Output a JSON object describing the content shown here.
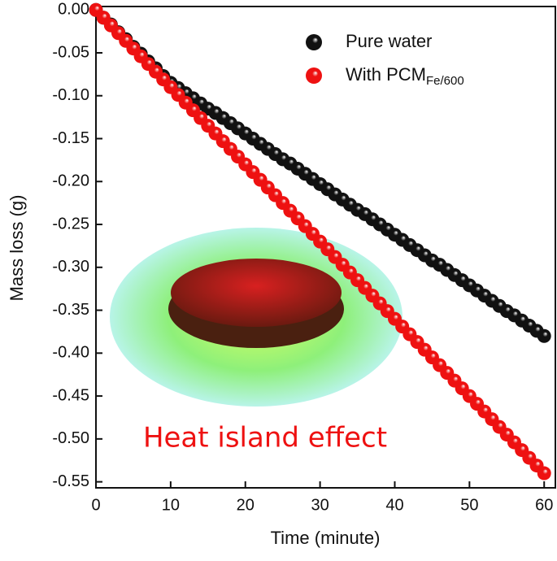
{
  "chart_data": {
    "type": "scatter",
    "x_label": "Time (minute)",
    "y_label": "Mass loss (g)",
    "annotation": "Heat island effect",
    "x": [
      0,
      1,
      2,
      3,
      4,
      5,
      6,
      7,
      8,
      9,
      10,
      11,
      12,
      13,
      14,
      15,
      16,
      17,
      18,
      19,
      20,
      21,
      22,
      23,
      24,
      25,
      26,
      27,
      28,
      29,
      30,
      31,
      32,
      33,
      34,
      35,
      36,
      37,
      38,
      39,
      40,
      41,
      42,
      43,
      44,
      45,
      46,
      47,
      48,
      49,
      50,
      51,
      52,
      53,
      54,
      55,
      56,
      57,
      58,
      59,
      60
    ],
    "series": [
      {
        "name": "Pure water",
        "color": "#111111",
        "values": [
          0,
          -0.009,
          -0.017,
          -0.026,
          -0.034,
          -0.043,
          -0.051,
          -0.06,
          -0.068,
          -0.077,
          -0.085,
          -0.091,
          -0.097,
          -0.103,
          -0.109,
          -0.115,
          -0.12,
          -0.126,
          -0.132,
          -0.138,
          -0.144,
          -0.15,
          -0.156,
          -0.162,
          -0.168,
          -0.174,
          -0.179,
          -0.185,
          -0.191,
          -0.197,
          -0.203,
          -0.209,
          -0.215,
          -0.221,
          -0.227,
          -0.233,
          -0.238,
          -0.244,
          -0.25,
          -0.256,
          -0.262,
          -0.268,
          -0.274,
          -0.28,
          -0.286,
          -0.292,
          -0.297,
          -0.303,
          -0.309,
          -0.315,
          -0.321,
          -0.327,
          -0.333,
          -0.339,
          -0.345,
          -0.351,
          -0.356,
          -0.362,
          -0.368,
          -0.374,
          -0.38
        ]
      },
      {
        "name": "With PCM",
        "name_subscript": "Fe/600",
        "color": "#ee1111",
        "values": [
          0,
          -0.009,
          -0.018,
          -0.027,
          -0.036,
          -0.045,
          -0.054,
          -0.063,
          -0.072,
          -0.081,
          -0.09,
          -0.099,
          -0.108,
          -0.117,
          -0.126,
          -0.135,
          -0.144,
          -0.153,
          -0.162,
          -0.171,
          -0.18,
          -0.189,
          -0.198,
          -0.207,
          -0.216,
          -0.225,
          -0.234,
          -0.243,
          -0.252,
          -0.261,
          -0.27,
          -0.279,
          -0.288,
          -0.297,
          -0.306,
          -0.315,
          -0.324,
          -0.333,
          -0.342,
          -0.351,
          -0.36,
          -0.369,
          -0.378,
          -0.387,
          -0.396,
          -0.405,
          -0.414,
          -0.423,
          -0.432,
          -0.441,
          -0.45,
          -0.459,
          -0.468,
          -0.477,
          -0.486,
          -0.495,
          -0.504,
          -0.513,
          -0.522,
          -0.531,
          -0.54
        ]
      }
    ],
    "xlim": [
      0,
      61.5
    ],
    "xticks": [
      0,
      10,
      20,
      30,
      40,
      50,
      60
    ],
    "ylim": [
      -0.557,
      0.004
    ],
    "yticks": [
      {
        "value": 0,
        "label": "0.00"
      },
      {
        "value": -0.05,
        "label": "-0.05"
      },
      {
        "value": -0.1,
        "label": "-0.10"
      },
      {
        "value": -0.15,
        "label": "-0.15"
      },
      {
        "value": -0.2,
        "label": "-0.20"
      },
      {
        "value": -0.25,
        "label": "-0.25"
      },
      {
        "value": -0.3,
        "label": "-0.30"
      },
      {
        "value": -0.35,
        "label": "-0.35"
      },
      {
        "value": -0.4,
        "label": "-0.40"
      },
      {
        "value": -0.45,
        "label": "-0.45"
      },
      {
        "value": -0.5,
        "label": "-0.50"
      },
      {
        "value": -0.55,
        "label": "-0.55"
      }
    ],
    "grid": false
  }
}
